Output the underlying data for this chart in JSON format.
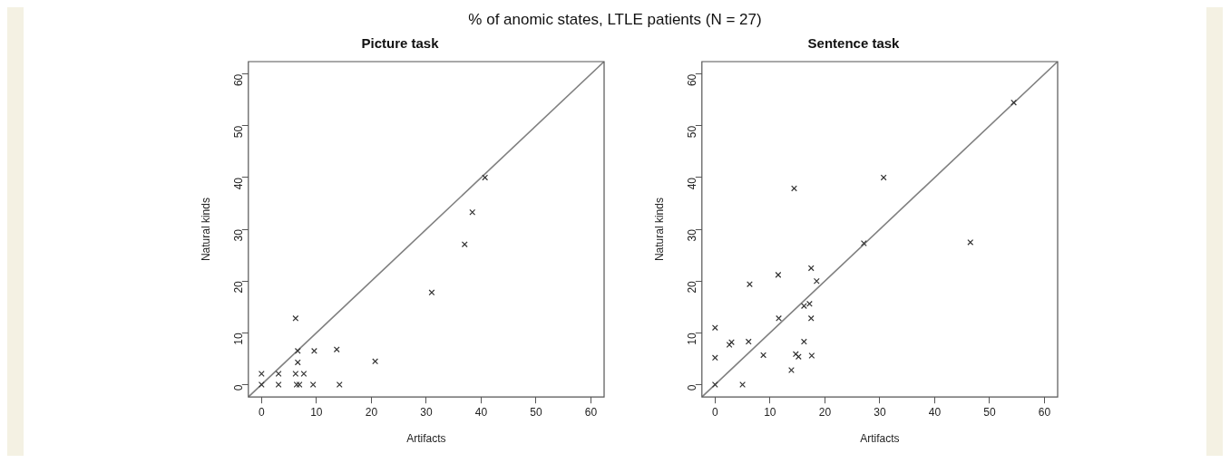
{
  "chart_data": [
    {
      "type": "scatter",
      "title": "Picture task",
      "xlabel": "Artifacts",
      "ylabel": "Natural kinds",
      "annotations": [
        "% of anomic states, LTLE patients (N = 27)"
      ],
      "xlim": [
        -2.4,
        62.4
      ],
      "ylim": [
        -2.4,
        62.4
      ],
      "xticks": [
        0,
        10,
        20,
        30,
        40,
        50,
        60
      ],
      "yticks": [
        0,
        10,
        20,
        30,
        40,
        50,
        60
      ],
      "grid": false,
      "legend": false,
      "series": [
        {
          "marker": "cross",
          "color": "#333333",
          "x": [
            0,
            0,
            3.1,
            3.1,
            6.2,
            6.6,
            6.6,
            6.2,
            7.7,
            6.4,
            6.9,
            9.4,
            9.6,
            13.7,
            14.2,
            20.7,
            31.0,
            37.0,
            38.4,
            40.7
          ],
          "values": [
            0,
            2.1,
            0,
            2.1,
            12.8,
            6.5,
            4.3,
            2.1,
            2.1,
            0,
            0,
            0,
            6.5,
            6.8,
            0,
            4.5,
            17.8,
            27.1,
            33.3,
            40.0
          ]
        },
        {
          "type": "line",
          "marker": "none",
          "color": "#808080",
          "x": [
            -2.4,
            62.4
          ],
          "values": [
            -2.4,
            62.4
          ]
        }
      ]
    },
    {
      "type": "scatter",
      "title": "Sentence task",
      "xlabel": "Artifacts",
      "ylabel": "Natural kinds",
      "xlim": [
        -2.4,
        62.4
      ],
      "ylim": [
        -2.4,
        62.4
      ],
      "xticks": [
        0,
        10,
        20,
        30,
        40,
        50,
        60
      ],
      "yticks": [
        0,
        10,
        20,
        30,
        40,
        50,
        60
      ],
      "grid": false,
      "legend": false,
      "series": [
        {
          "marker": "cross",
          "color": "#333333",
          "x": [
            0,
            0,
            0,
            2.6,
            3.0,
            5.0,
            6.1,
            6.3,
            8.8,
            11.5,
            11.6,
            13.9,
            14.4,
            14.7,
            15.2,
            16.2,
            16.2,
            17.2,
            17.5,
            17.6,
            17.5,
            18.5,
            27.1,
            30.7,
            46.5,
            54.4
          ],
          "values": [
            0,
            5.2,
            11.0,
            7.7,
            8.2,
            0,
            8.3,
            19.4,
            5.7,
            21.2,
            12.8,
            2.8,
            37.9,
            5.9,
            5.4,
            8.3,
            15.2,
            15.6,
            12.8,
            5.6,
            22.5,
            20.0,
            27.3,
            40.0,
            27.5,
            54.5
          ]
        },
        {
          "type": "line",
          "marker": "none",
          "color": "#808080",
          "x": [
            -2.4,
            62.4
          ],
          "values": [
            -2.4,
            62.4
          ]
        }
      ]
    }
  ]
}
